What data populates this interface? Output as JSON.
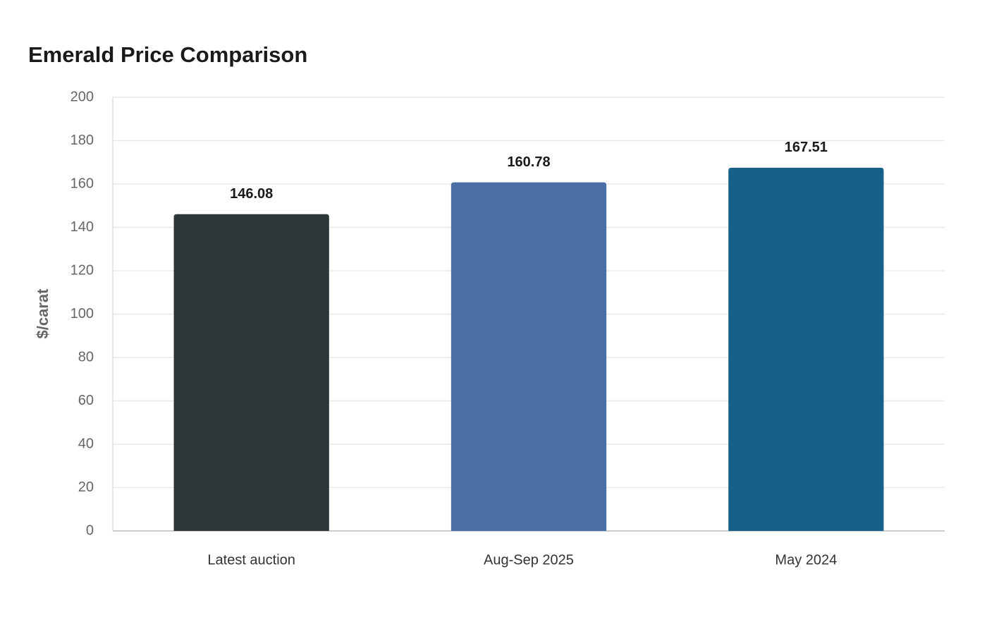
{
  "chart_data": {
    "type": "bar",
    "title": "Emerald Price Comparison",
    "y_label": "$/carat",
    "categories": [
      "Latest auction",
      "Aug-Sep 2025",
      "May 2024"
    ],
    "values": [
      146.08,
      160.78,
      167.51
    ],
    "colors": [
      "#2e3538",
      "#4a6fa5",
      "#176088"
    ],
    "ylim": [
      0,
      200
    ],
    "yticks": [
      0,
      20,
      40,
      60,
      80,
      100,
      120,
      140,
      160,
      180,
      200
    ],
    "grid": true
  }
}
